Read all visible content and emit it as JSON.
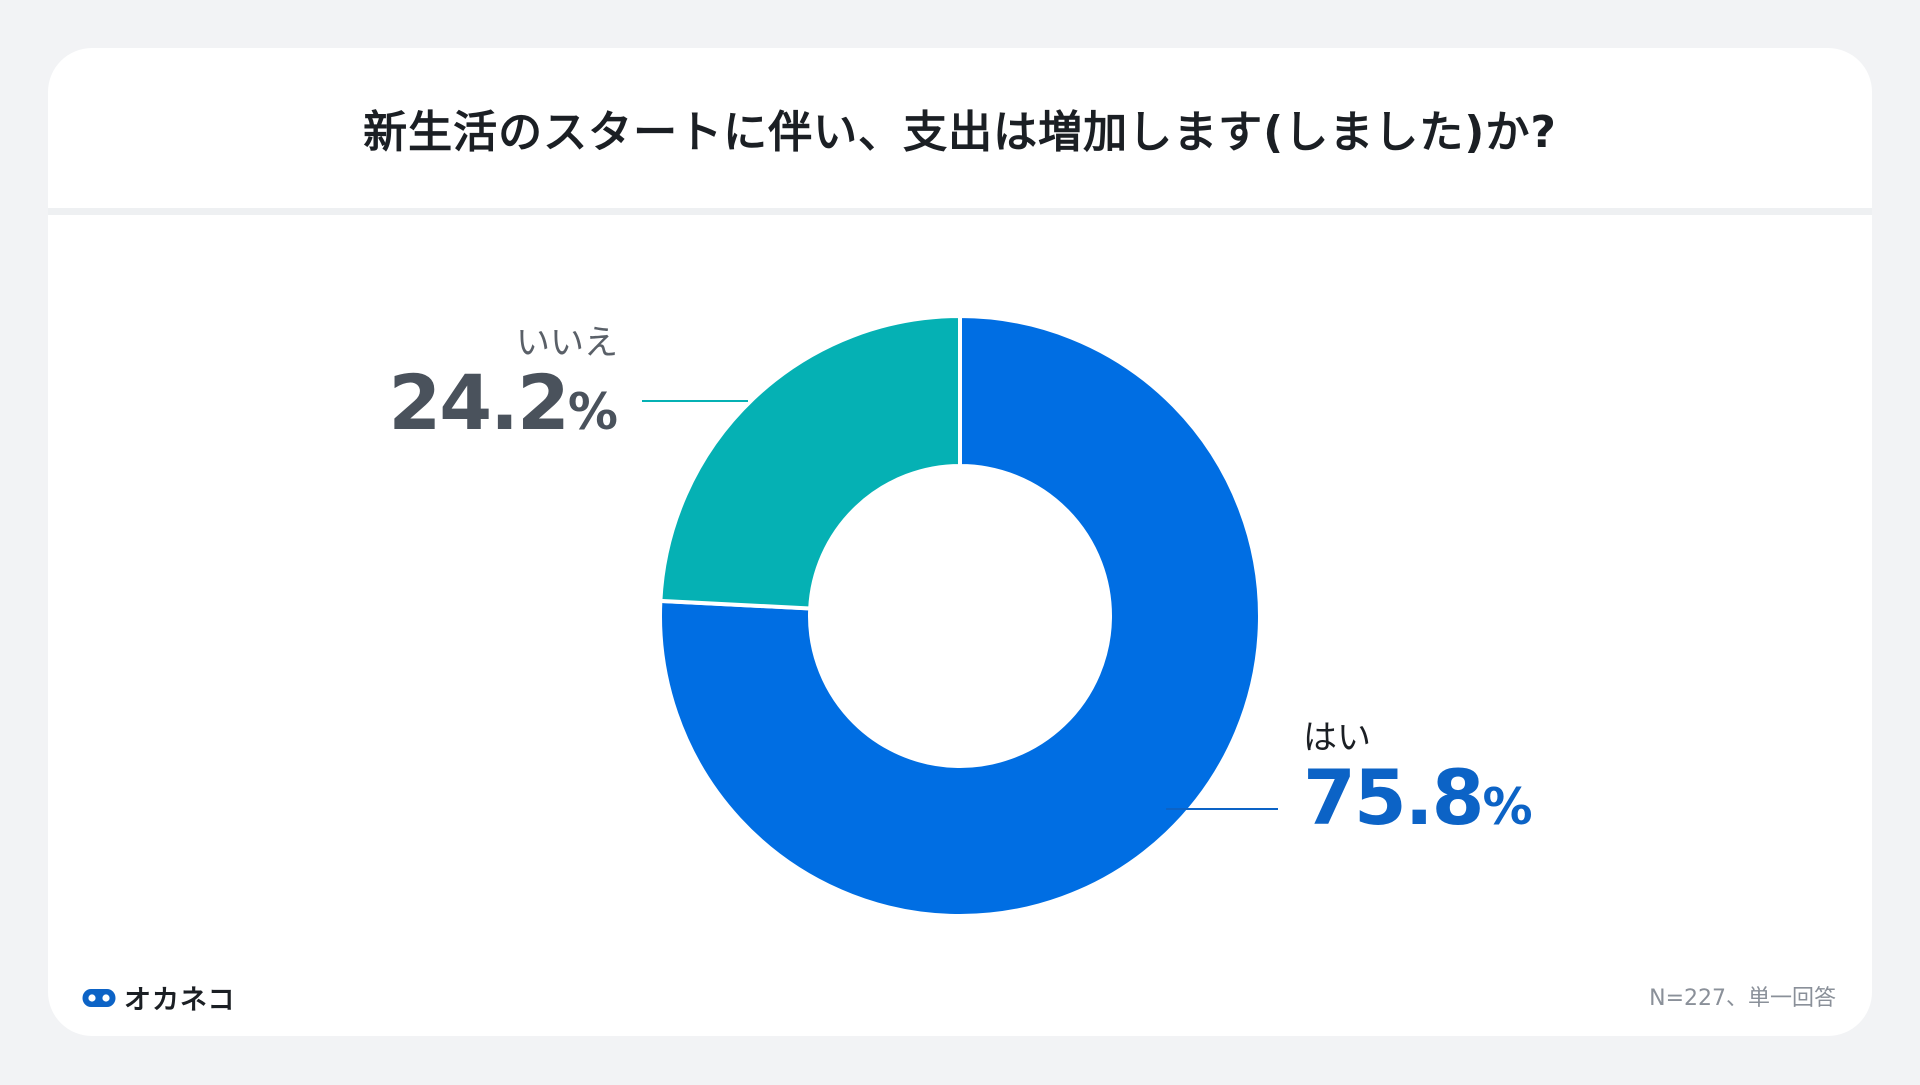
{
  "title": "新生活のスタートに伴い、支出は増加します(しました)か?",
  "colors": {
    "yes": "#006ee3",
    "no": "#05b1b4",
    "leader_yes": "#0c63c6",
    "leader_no": "#05b1b4"
  },
  "chart_data": {
    "type": "pie",
    "donut": true,
    "categories": [
      "はい",
      "いいえ"
    ],
    "values": [
      75.8,
      24.2
    ],
    "value_labels": [
      "75.8",
      "24.2"
    ],
    "unit": "%"
  },
  "logo": {
    "text": "オカネコ",
    "icon": "okaneko-logo-icon"
  },
  "footnote": "N=227、単一回答"
}
